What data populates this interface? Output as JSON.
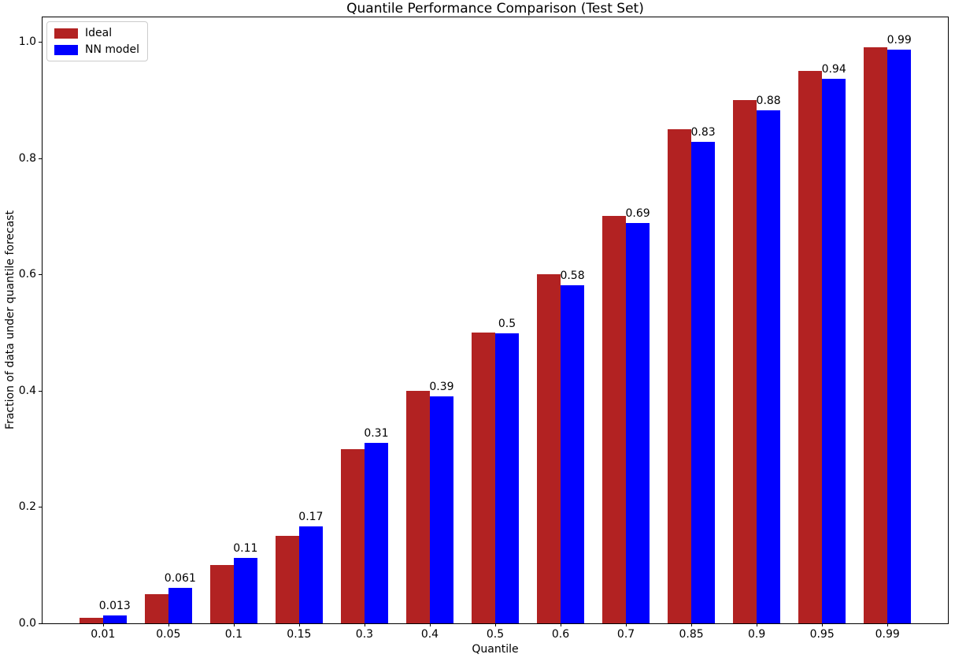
{
  "chart_data": {
    "type": "bar",
    "title": "Quantile Performance Comparison (Test Set)",
    "xlabel": "Quantile",
    "ylabel": "Fraction of data under quantile forecast",
    "categories": [
      "0.01",
      "0.05",
      "0.1",
      "0.15",
      "0.3",
      "0.4",
      "0.5",
      "0.6",
      "0.7",
      "0.85",
      "0.9",
      "0.95",
      "0.99"
    ],
    "series": [
      {
        "name": "Ideal",
        "color": "#b22222",
        "values": [
          0.01,
          0.05,
          0.1,
          0.15,
          0.3,
          0.4,
          0.5,
          0.6,
          0.7,
          0.85,
          0.9,
          0.95,
          0.99
        ]
      },
      {
        "name": "NN model",
        "color": "#0000ff",
        "values": [
          0.013,
          0.061,
          0.112,
          0.167,
          0.31,
          0.39,
          0.498,
          0.581,
          0.688,
          0.828,
          0.882,
          0.937,
          0.987
        ],
        "bar_labels": [
          "0.013",
          "0.061",
          "0.11",
          "0.17",
          "0.31",
          "0.39",
          "0.5",
          "0.58",
          "0.69",
          "0.83",
          "0.88",
          "0.94",
          "0.99"
        ]
      }
    ],
    "y_ticks": [
      "0.0",
      "0.2",
      "0.4",
      "0.6",
      "0.8",
      "1.0"
    ],
    "ylim": [
      0,
      1.042
    ],
    "grid": false,
    "legend_position": "upper left"
  }
}
